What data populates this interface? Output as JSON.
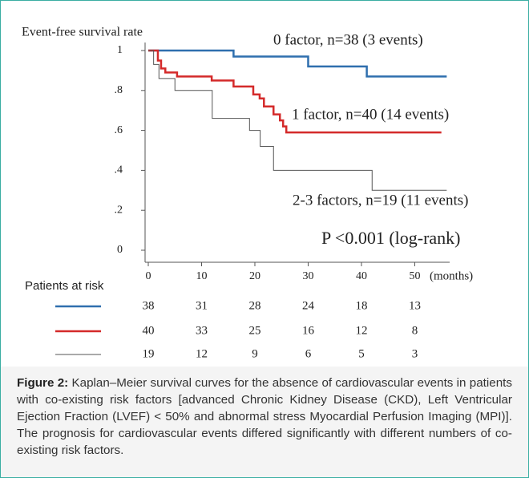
{
  "chart_data": {
    "type": "step",
    "ylabel": "Event-free survival rate",
    "x_unit": "(months)",
    "annotation": "P <0.001 (log-rank)",
    "xlim": [
      0,
      57
    ],
    "xticks": [
      0,
      10,
      20,
      30,
      40,
      50
    ],
    "ylim": [
      0,
      1
    ],
    "yticks": [
      0,
      {
        "value": 0.2,
        "label": ".2"
      },
      {
        "value": 0.4,
        "label": ".4"
      },
      {
        "value": 0.6,
        "label": ".6"
      },
      {
        "value": 0.8,
        "label": ".8"
      },
      1
    ],
    "series": [
      {
        "name": "0 factor, n=38 (3 events)",
        "color": "#2f6fae",
        "x": [
          0,
          16,
          30,
          41,
          56
        ],
        "values": [
          1,
          0.97,
          0.92,
          0.87,
          0.87
        ]
      },
      {
        "name": "1 factor, n=40 (14 events)",
        "color": "#d42a2a",
        "x": [
          0,
          1.8,
          2.4,
          3.2,
          5.4,
          11.9,
          16,
          19.7,
          20.9,
          21.7,
          23.5,
          24.7,
          25.3,
          25.9,
          55
        ],
        "values": [
          1,
          0.95,
          0.91,
          0.89,
          0.87,
          0.85,
          0.82,
          0.78,
          0.76,
          0.72,
          0.68,
          0.65,
          0.62,
          0.59,
          0.59
        ]
      },
      {
        "name": "2-3 factors, n=19 (11 events)",
        "color": "#555555",
        "x": [
          0,
          1,
          2,
          5,
          12,
          19,
          21,
          23.5,
          42,
          56
        ],
        "values": [
          1,
          0.93,
          0.86,
          0.8,
          0.66,
          0.6,
          0.52,
          0.4,
          0.3,
          0.3
        ]
      }
    ],
    "risk_table": {
      "title": "Patients at risk",
      "rows": [
        [
          38,
          31,
          28,
          24,
          18,
          13
        ],
        [
          40,
          33,
          25,
          16,
          12,
          8
        ],
        [
          19,
          12,
          9,
          6,
          5,
          3
        ]
      ]
    }
  },
  "caption": {
    "label": "Figure 2:",
    "text": "Kaplan–Meier survival curves for the absence of cardiovascular events in patients with co-existing risk factors [advanced Chronic Kidney Disease (CKD), Left Ventricular Ejection Fraction (LVEF) < 50% and abnormal stress Myocardial Perfusion Imaging (MPI)]. The prognosis for cardiovascular events differed significantly with different numbers of co-existing risk factors."
  }
}
